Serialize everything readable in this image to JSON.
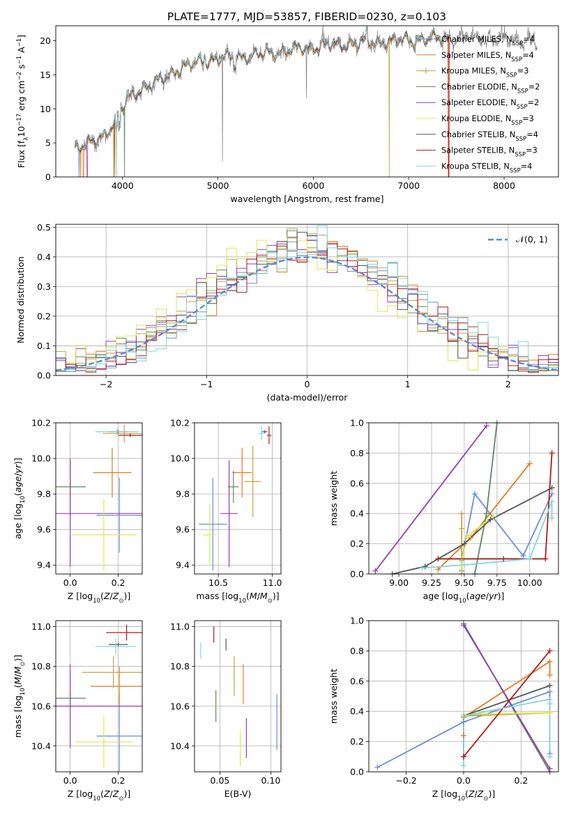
{
  "figure": {
    "title": "PLATE=1777, MJD=53857, FIBERID=0230, z=0.103"
  },
  "models": [
    {
      "legend": "Chabrier MILES, N_{SSP}=4",
      "pre": "Chabrier MILES, N",
      "sub": "SSP",
      "post": "=4",
      "color": "#6a8fd8"
    },
    {
      "legend": "Salpeter MILES, N_{SSP}=4",
      "pre": "Salpeter MILES, N",
      "sub": "SSP",
      "post": "=4",
      "color": "#e8781e"
    },
    {
      "legend": "Kroupa MILES, N_{SSP}=3",
      "pre": "Kroupa MILES, N",
      "sub": "SSP",
      "post": "=3",
      "color": "#c8a040"
    },
    {
      "legend": "Chabrier ELODIE, N_{SSP}=2",
      "pre": "Chabrier ELODIE, N",
      "sub": "SSP",
      "post": "=2",
      "color": "#5a8a5e"
    },
    {
      "legend": "Salpeter ELODIE, N_{SSP}=2",
      "pre": "Salpeter ELODIE, N",
      "sub": "SSP",
      "post": "=2",
      "color": "#9a3ab8"
    },
    {
      "legend": "Kroupa ELODIE, N_{SSP}=3",
      "pre": "Kroupa ELODIE, N",
      "sub": "SSP",
      "post": "=3",
      "color": "#dce84a"
    },
    {
      "legend": "Chabrier STELIB, N_{SSP}=4",
      "pre": "Chabrier STELIB, N",
      "sub": "SSP",
      "post": "=4",
      "color": "#555555"
    },
    {
      "legend": "Salpeter STELIB, N_{SSP}=3",
      "pre": "Salpeter STELIB, N",
      "sub": "SSP",
      "post": "=3",
      "color": "#b01a1a"
    },
    {
      "legend": "Kroupa STELIB, N_{SSP}=4",
      "pre": "Kroupa STELIB, N",
      "sub": "SSP",
      "post": "=4",
      "color": "#7fd6df"
    }
  ],
  "chart_data": [
    {
      "id": "spectrum",
      "type": "line",
      "xlabel": "wavelength [Angstrom, rest frame]",
      "ylabel": "Flux [f_λ 10^{-17} erg cm^{-2} s^{-1} A^{-1}]",
      "xlim": [
        3300,
        8570
      ],
      "ylim": [
        0,
        22.2
      ],
      "xticks": [
        4000,
        5000,
        6000,
        7000,
        8000
      ],
      "yticks": [
        0,
        5,
        10,
        15,
        20
      ],
      "data_color": "#7f7f7f",
      "wavelength_range": [
        3500,
        8350
      ],
      "continuum_profile": {
        "x": [
          3500,
          3650,
          3800,
          3950,
          4050,
          4200,
          4400,
          4600,
          4800,
          5000,
          5200,
          5500,
          5800,
          6100,
          6400,
          6700,
          7000,
          7300,
          7500,
          7800,
          8100,
          8350
        ],
        "y": [
          4.4,
          4.8,
          6.0,
          8.9,
          11.4,
          13.0,
          14.2,
          16.0,
          16.9,
          17.4,
          17.6,
          18.1,
          18.7,
          19.3,
          19.6,
          19.9,
          20.1,
          20.3,
          20.4,
          20.4,
          20.2,
          19.8
        ]
      },
      "models_end_at": 7430
    },
    {
      "id": "residuals",
      "type": "histogram",
      "xlabel": "(data-model)/error",
      "ylabel": "Normed distribution",
      "xlim": [
        -2.5,
        2.5
      ],
      "ylim": [
        0,
        0.51
      ],
      "xticks": [
        -2,
        -1,
        0,
        1,
        2
      ],
      "yticks": [
        0.0,
        0.1,
        0.2,
        0.3,
        0.4,
        0.5
      ],
      "bin_width": 0.1,
      "reference_curve": {
        "label": "𝒩(0, 1)",
        "mean": 0,
        "sigma": 1,
        "color": "#5a8ad8"
      }
    },
    {
      "id": "age_vs_Z",
      "type": "errorbar",
      "xlabel": "Z [log10(Z/Z⊙)]",
      "ylabel": "age  [log10(age/yr)]",
      "xlim": [
        -0.06,
        0.3
      ],
      "ylim": [
        9.35,
        10.2
      ],
      "xticks": [
        0.0,
        0.2
      ],
      "yticks": [
        9.4,
        9.6,
        9.8,
        10.0,
        10.2
      ],
      "points": [
        {
          "x": 0.205,
          "y": 9.68,
          "xerr": 0.095,
          "yerr": 0.21
        },
        {
          "x": 0.175,
          "y": 9.92,
          "xerr": 0.08,
          "yerr": 0.14
        },
        {
          "x": 0.225,
          "y": 10.14,
          "xerr": 0.09,
          "yerr": 0.05
        },
        {
          "x": 0.0,
          "y": 9.84,
          "xerr": 0.065,
          "yerr": 0.16
        },
        {
          "x": 0.0,
          "y": 9.69,
          "xerr": 0.3,
          "yerr": 0.3
        },
        {
          "x": 0.14,
          "y": 9.57,
          "xerr": 0.135,
          "yerr": 0.2
        },
        {
          "x": 0.2,
          "y": 10.15,
          "xerr": 0.04,
          "yerr": 0.01
        },
        {
          "x": 0.25,
          "y": 10.13,
          "xerr": 0.05,
          "yerr": 0.01
        },
        {
          "x": 0.195,
          "y": 10.15,
          "xerr": 0.09,
          "yerr": 0.02
        }
      ]
    },
    {
      "id": "age_vs_mass",
      "type": "errorbar",
      "xlabel": "mass [log10(M/M⊙)]",
      "ylabel": "",
      "xlim": [
        10.28,
        11.08
      ],
      "ylim": [
        9.35,
        10.2
      ],
      "xticks": [
        10.5,
        11.0
      ],
      "yticks": [
        9.4,
        9.6,
        9.8,
        10.0,
        10.2
      ],
      "points": [
        {
          "x": 10.45,
          "y": 9.63,
          "xerr": 0.13,
          "yerr": 0.26
        },
        {
          "x": 10.72,
          "y": 9.92,
          "xerr": 0.09,
          "yerr": 0.14
        },
        {
          "x": 10.82,
          "y": 9.87,
          "xerr": 0.075,
          "yerr": 0.2
        },
        {
          "x": 10.64,
          "y": 9.84,
          "xerr": 0.05,
          "yerr": 0.09
        },
        {
          "x": 10.6,
          "y": 9.69,
          "xerr": 0.08,
          "yerr": 0.3
        },
        {
          "x": 10.42,
          "y": 9.57,
          "xerr": 0.06,
          "yerr": 0.17
        },
        {
          "x": 10.93,
          "y": 10.15,
          "xerr": 0.025,
          "yerr": 0.01
        },
        {
          "x": 10.97,
          "y": 10.13,
          "xerr": 0.02,
          "yerr": 0.05
        },
        {
          "x": 10.9,
          "y": 10.14,
          "xerr": 0.03,
          "yerr": 0.04
        }
      ]
    },
    {
      "id": "massweight_vs_age",
      "type": "line",
      "xlabel": "age  [log10(age/yr)]",
      "ylabel": "mass weight",
      "xlim": [
        8.77,
        10.22
      ],
      "ylim": [
        0,
        1
      ],
      "xticks": [
        9.0,
        9.25,
        9.5,
        9.75,
        10.0
      ],
      "yticks": [
        0.0,
        0.2,
        0.4,
        0.6,
        0.8,
        1.0
      ],
      "series": [
        {
          "x": [
            9.48,
            9.48,
            9.58,
            9.95,
            10.17
          ],
          "y": [
            0.02,
            0.09,
            0.53,
            0.12,
            0.53
          ]
        },
        {
          "x": [
            9.3,
            9.55,
            10.0
          ],
          "y": [
            0.03,
            0.24,
            0.73
          ]
        },
        {
          "x": [
            9.48,
            9.48,
            9.48
          ],
          "y": [
            0.0,
            0.3,
            0.4
          ]
        },
        {
          "x": [
            9.58,
            9.67,
            9.75
          ],
          "y": [
            0.0,
            0.4,
            1.0
          ]
        },
        {
          "x": [
            8.82,
            9.67
          ],
          "y": [
            0.02,
            0.98
          ]
        },
        {
          "x": [
            9.48,
            9.48,
            9.52,
            9.72
          ],
          "y": [
            0.03,
            0.08,
            0.25,
            0.38
          ]
        },
        {
          "x": [
            8.95,
            9.2,
            9.5,
            9.7,
            10.17
          ],
          "y": [
            0.0,
            0.05,
            0.2,
            0.36,
            0.57
          ]
        },
        {
          "x": [
            9.3,
            9.8,
            10.12,
            10.17
          ],
          "y": [
            0.1,
            0.1,
            0.1,
            0.8
          ]
        },
        {
          "x": [
            9.18,
            9.5,
            10.0,
            10.17,
            10.17
          ],
          "y": [
            0.04,
            0.06,
            0.1,
            0.48,
            0.37
          ]
        }
      ]
    },
    {
      "id": "mass_vs_Z",
      "type": "errorbar",
      "xlabel": "Z [log10(Z/Z⊙)]",
      "ylabel": "mass [log10(M/M⊙)]",
      "xlim": [
        -0.06,
        0.3
      ],
      "ylim": [
        10.27,
        11.03
      ],
      "xticks": [
        0.0,
        0.2
      ],
      "yticks": [
        10.4,
        10.6,
        10.8,
        11.0
      ],
      "points": [
        {
          "x": 0.205,
          "y": 10.45,
          "xerr": 0.095,
          "yerr": 0.21
        },
        {
          "x": 0.205,
          "y": 10.7,
          "xerr": 0.12,
          "yerr": 0.1
        },
        {
          "x": 0.18,
          "y": 10.77,
          "xerr": 0.13,
          "yerr": 0.08
        },
        {
          "x": 0.0,
          "y": 10.64,
          "xerr": 0.065,
          "yerr": 0.04
        },
        {
          "x": 0.0,
          "y": 10.6,
          "xerr": 0.3,
          "yerr": 0.21
        },
        {
          "x": 0.14,
          "y": 10.42,
          "xerr": 0.12,
          "yerr": 0.13
        },
        {
          "x": 0.2,
          "y": 10.91,
          "xerr": 0.04,
          "yerr": 0.01
        },
        {
          "x": 0.235,
          "y": 10.97,
          "xerr": 0.085,
          "yerr": 0.04
        },
        {
          "x": 0.19,
          "y": 10.9,
          "xerr": 0.085,
          "yerr": 0.04
        }
      ]
    },
    {
      "id": "mass_vs_EBV",
      "type": "errorbar",
      "xlabel": "E(B-V)",
      "ylabel": "",
      "xlim": [
        0.025,
        0.11
      ],
      "ylim": [
        10.27,
        11.03
      ],
      "xticks": [
        0.05,
        0.1
      ],
      "yticks": [
        10.4,
        10.6,
        10.8,
        11.0
      ],
      "points": [
        {
          "x": 0.106,
          "y": 10.52,
          "xerr": 0,
          "yerr": 0.14
        },
        {
          "x": 0.073,
          "y": 10.71,
          "xerr": 0,
          "yerr": 0.1
        },
        {
          "x": 0.064,
          "y": 10.75,
          "xerr": 0,
          "yerr": 0.1
        },
        {
          "x": 0.046,
          "y": 10.6,
          "xerr": 0,
          "yerr": 0.08
        },
        {
          "x": 0.076,
          "y": 10.44,
          "xerr": 0,
          "yerr": 0.1
        },
        {
          "x": 0.07,
          "y": 10.39,
          "xerr": 0,
          "yerr": 0.09
        },
        {
          "x": 0.056,
          "y": 10.91,
          "xerr": 0,
          "yerr": 0.03
        },
        {
          "x": 0.044,
          "y": 10.96,
          "xerr": 0,
          "yerr": 0.04
        },
        {
          "x": 0.031,
          "y": 10.88,
          "xerr": 0,
          "yerr": 0.04
        }
      ]
    },
    {
      "id": "massweight_vs_Z",
      "type": "line",
      "xlabel": "Z [log10(Z/Z⊙)]",
      "ylabel": "mass weight",
      "xlim": [
        -0.33,
        0.33
      ],
      "ylim": [
        0,
        1
      ],
      "xticks": [
        -0.2,
        0.0,
        0.2
      ],
      "yticks": [
        0.0,
        0.2,
        0.4,
        0.6,
        0.8,
        1.0
      ],
      "series": [
        {
          "x": [
            -0.3,
            0.0,
            0.3,
            0.3
          ],
          "y": [
            0.03,
            0.33,
            0.53,
            0.12
          ]
        },
        {
          "x": [
            0.0,
            0.0,
            0.3,
            0.3
          ],
          "y": [
            0.24,
            0.36,
            0.73,
            0.64
          ]
        },
        {
          "x": [
            0.0,
            0.3
          ],
          "y": [
            0.37,
            0.39
          ]
        },
        {
          "x": [
            0.0,
            0.3
          ],
          "y": [
            0.98,
            0.0
          ]
        },
        {
          "x": [
            0.0,
            0.3
          ],
          "y": [
            0.97,
            0.02
          ]
        },
        {
          "x": [
            0.0,
            0.3
          ],
          "y": [
            0.38,
            0.39
          ]
        },
        {
          "x": [
            0.0,
            0.0,
            0.3
          ],
          "y": [
            0.1,
            0.37,
            0.57
          ]
        },
        {
          "x": [
            0.0,
            0.3
          ],
          "y": [
            0.1,
            0.8
          ]
        },
        {
          "x": [
            0.0,
            0.0,
            0.3,
            0.3,
            0.3
          ],
          "y": [
            0.04,
            0.37,
            0.48,
            0.1,
            0.45
          ]
        }
      ]
    }
  ]
}
